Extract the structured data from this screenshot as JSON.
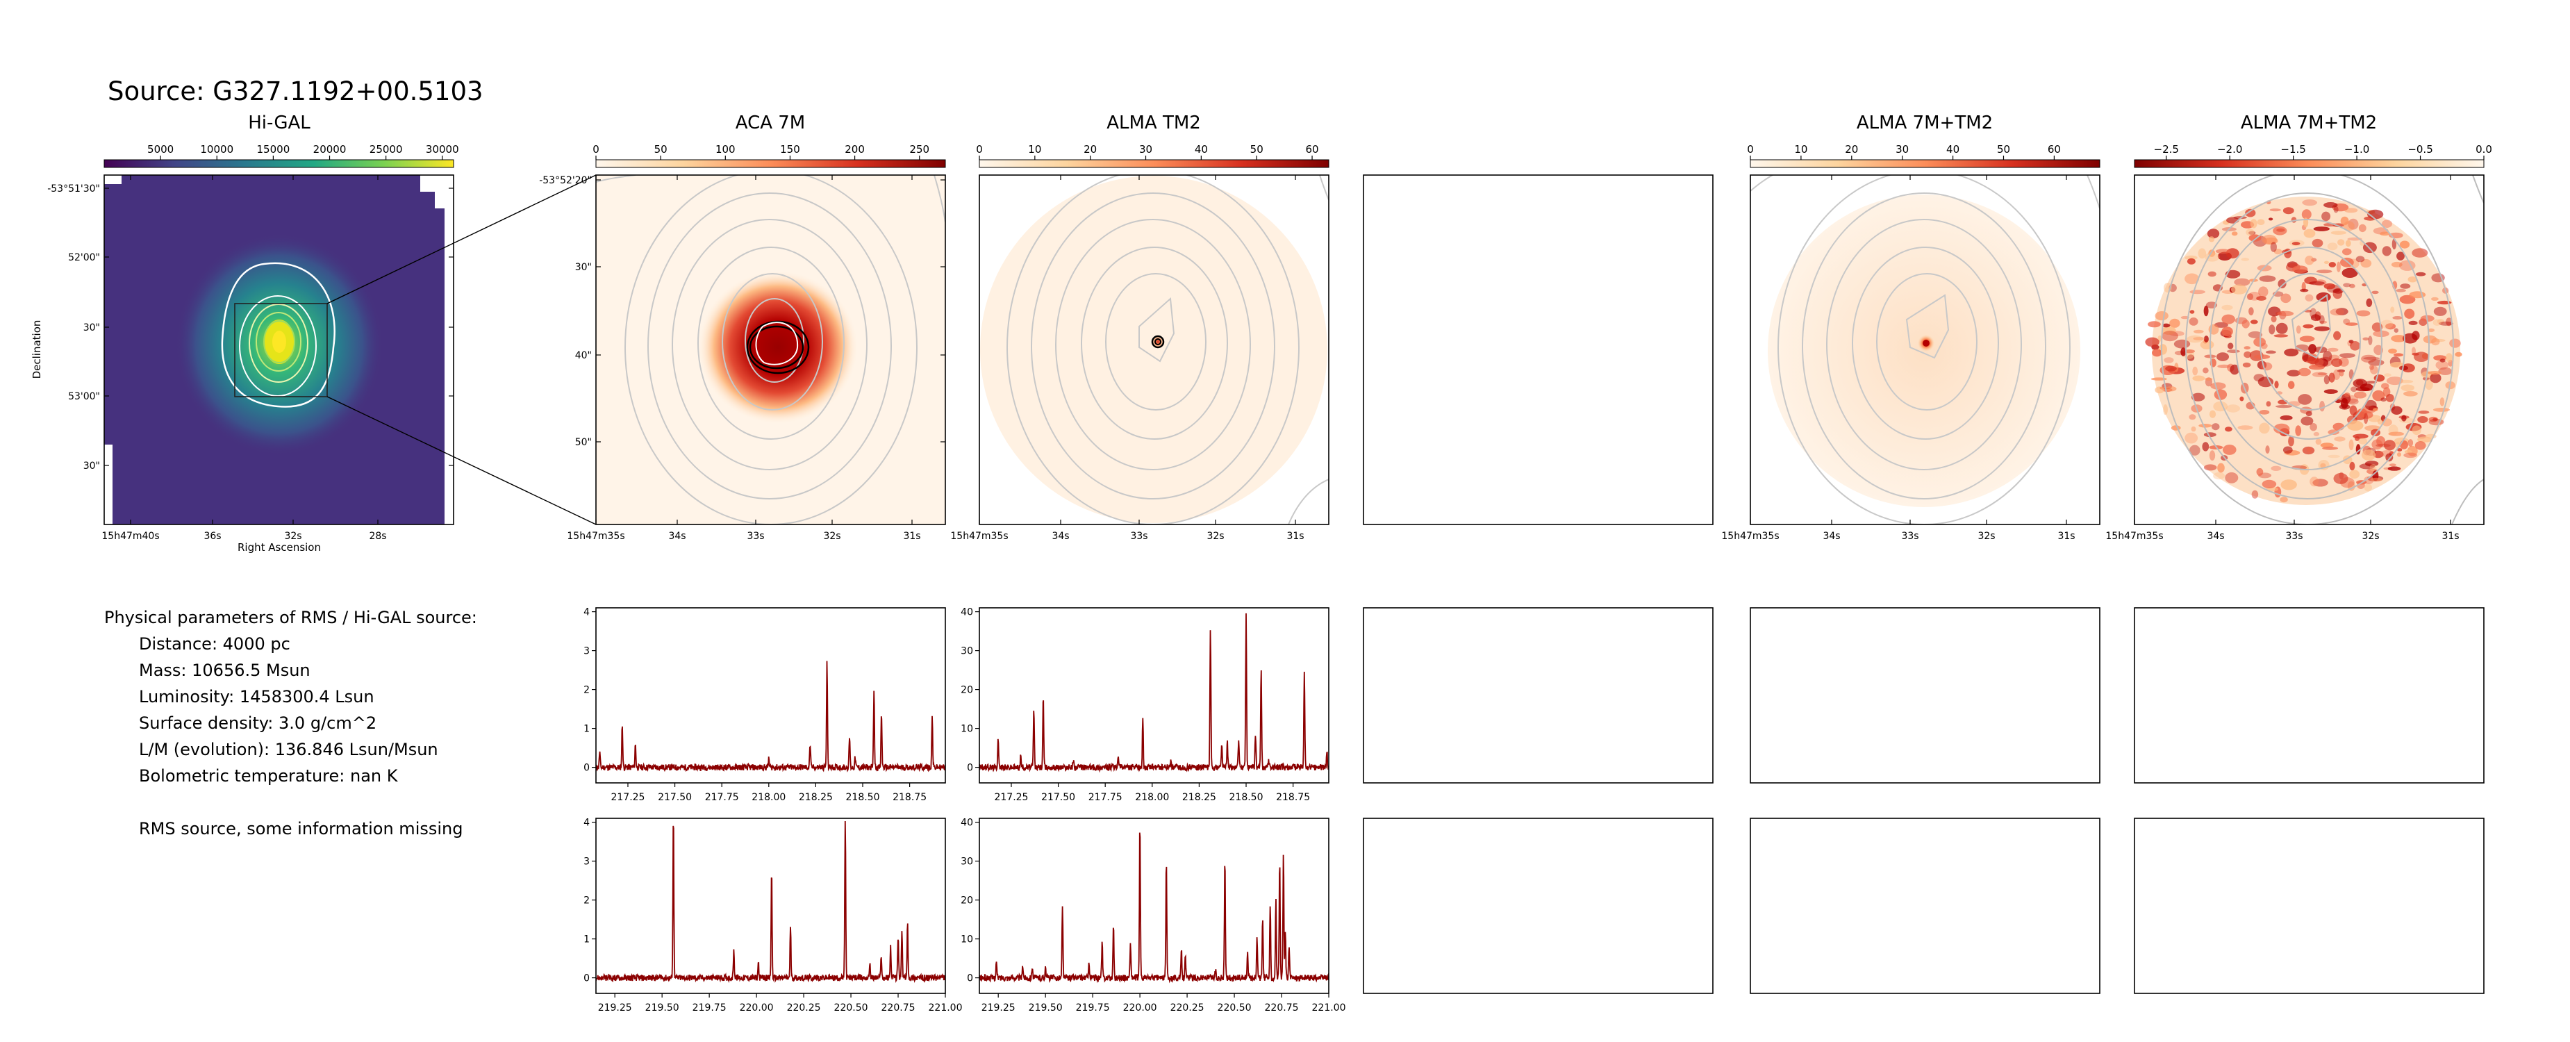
{
  "source_title": "Source: G327.1192+00.5103",
  "panel_titles": {
    "higal": "Hi-GAL",
    "aca7m": "ACA 7M",
    "alma_tm2": "ALMA TM2",
    "alma_7m_tm2": "ALMA 7M+TM2",
    "alma_7m_tm2_b": "ALMA 7M+TM2"
  },
  "colorbars": {
    "higal": {
      "cmap": "viridis",
      "ticks": [
        "5000",
        "10000",
        "15000",
        "20000",
        "25000",
        "30000"
      ],
      "vmin": 0,
      "vmax": 31000,
      "tick_values": [
        5000,
        10000,
        15000,
        20000,
        25000,
        30000
      ]
    },
    "aca7m": {
      "cmap": "OrRd",
      "ticks": [
        "0",
        "50",
        "100",
        "150",
        "200",
        "250"
      ],
      "vmin": 0,
      "vmax": 270,
      "tick_values": [
        0,
        50,
        100,
        150,
        200,
        250
      ]
    },
    "alma_tm2": {
      "cmap": "OrRd",
      "ticks": [
        "0",
        "10",
        "20",
        "30",
        "40",
        "50",
        "60"
      ],
      "vmin": 0,
      "vmax": 63,
      "tick_values": [
        0,
        10,
        20,
        30,
        40,
        50,
        60
      ]
    },
    "alma_7m_tm2": {
      "cmap": "OrRd",
      "ticks": [
        "0",
        "10",
        "20",
        "30",
        "40",
        "50",
        "60"
      ],
      "vmin": 0,
      "vmax": 69,
      "tick_values": [
        0,
        10,
        20,
        30,
        40,
        50,
        60
      ]
    },
    "alma_7m_tm2_b": {
      "cmap": "OrRd_r",
      "ticks": [
        "−2.5",
        "−2.0",
        "−1.5",
        "−1.0",
        "−0.5",
        "0.0"
      ],
      "vmin": -2.75,
      "vmax": 0,
      "tick_values": [
        -2.5,
        -2.0,
        -1.5,
        -1.0,
        -0.5,
        0.0
      ]
    }
  },
  "higal_axes": {
    "ylabel": "Declination",
    "xlabel": "Right Ascension",
    "yticks": [
      "-53°51'30\"",
      "52'00\"",
      "30\"",
      "53'00\"",
      "30\""
    ],
    "xticks": [
      "15h47m40s",
      "36s",
      "32s",
      "28s"
    ]
  },
  "zoom_axes": {
    "yticks": [
      "-53°52'20\"",
      "30\"",
      "40\"",
      "50\""
    ],
    "xticks": [
      "15h47m35s",
      "34s",
      "33s",
      "32s",
      "31s"
    ]
  },
  "params": {
    "heading": "Physical parameters of RMS / Hi-GAL source:",
    "distance": "Distance: 4000 pc",
    "mass": "Mass: 10656.5 Msun",
    "luminosity": "Luminosity: 1458300.4 Lsun",
    "surface_density": "Surface density: 3.0 g/cm^2",
    "lm": "L/M (evolution): 136.846 Lsun/Msun",
    "tbol": "Bolometric temperature: nan K",
    "note": "RMS source, some information missing"
  },
  "colors": {
    "spectrum": "#8b0000",
    "contour_grey": "#c8c8c8",
    "contour_white": "#ffffff"
  },
  "chart_data": [
    {
      "type": "line",
      "panel": "ACA 7M spectrum, upper band",
      "title": "",
      "xlim": [
        217.08,
        218.94
      ],
      "ylim": [
        -0.4,
        4.1
      ],
      "xticks": [
        217.25,
        217.5,
        217.75,
        218.0,
        218.25,
        218.5,
        218.75
      ],
      "xtick_labels": [
        "217.25",
        "217.50",
        "217.75",
        "218.00",
        "218.25",
        "218.50",
        "218.75"
      ],
      "yticks": [
        0,
        1,
        2,
        3,
        4
      ],
      "ytick_labels": [
        "0",
        "1",
        "2",
        "3",
        "4"
      ],
      "noise": 0.08,
      "peaks": [
        [
          217.1,
          0.4
        ],
        [
          217.22,
          1.1
        ],
        [
          217.29,
          0.6
        ],
        [
          218.0,
          0.2
        ],
        [
          218.22,
          0.6
        ],
        [
          218.31,
          2.7
        ],
        [
          218.43,
          0.8
        ],
        [
          218.46,
          0.25
        ],
        [
          218.56,
          2.0
        ],
        [
          218.6,
          1.4
        ],
        [
          218.87,
          1.3
        ]
      ]
    },
    {
      "type": "line",
      "panel": "ALMA TM2 spectrum, upper band",
      "title": "",
      "xlim": [
        217.08,
        218.94
      ],
      "ylim": [
        -4,
        41
      ],
      "xticks": [
        217.25,
        217.5,
        217.75,
        218.0,
        218.25,
        218.5,
        218.75
      ],
      "xtick_labels": [
        "217.25",
        "217.50",
        "217.75",
        "218.00",
        "218.25",
        "218.50",
        "218.75"
      ],
      "yticks": [
        0,
        10,
        20,
        30,
        40
      ],
      "ytick_labels": [
        "0",
        "10",
        "20",
        "30",
        "40"
      ],
      "noise": 0.8,
      "peaks": [
        [
          217.18,
          8
        ],
        [
          217.3,
          3
        ],
        [
          217.37,
          15
        ],
        [
          217.42,
          18
        ],
        [
          217.58,
          2
        ],
        [
          217.82,
          3
        ],
        [
          217.95,
          12
        ],
        [
          218.1,
          2
        ],
        [
          218.31,
          36
        ],
        [
          218.37,
          6
        ],
        [
          218.4,
          6.5
        ],
        [
          218.46,
          7
        ],
        [
          218.5,
          39
        ],
        [
          218.55,
          9
        ],
        [
          218.58,
          25
        ],
        [
          218.62,
          2
        ],
        [
          218.81,
          25
        ],
        [
          218.93,
          4
        ]
      ]
    },
    {
      "type": "line",
      "panel": "ACA 7M spectrum, lower band",
      "title": "",
      "xlim": [
        219.15,
        221.0
      ],
      "ylim": [
        -0.4,
        4.1
      ],
      "xticks": [
        219.25,
        219.5,
        219.75,
        220.0,
        220.25,
        220.5,
        220.75,
        221.0
      ],
      "xtick_labels": [
        "219.25",
        "219.50",
        "219.75",
        "220.00",
        "220.25",
        "220.50",
        "220.75",
        "221.00"
      ],
      "yticks": [
        0,
        1,
        2,
        3,
        4
      ],
      "ytick_labels": [
        "0",
        "1",
        "2",
        "3",
        "4"
      ],
      "noise": 0.08,
      "peaks": [
        [
          219.56,
          4.2
        ],
        [
          219.88,
          0.7
        ],
        [
          220.01,
          0.4
        ],
        [
          220.08,
          2.8
        ],
        [
          220.18,
          1.3
        ],
        [
          220.47,
          4.1
        ],
        [
          220.6,
          0.4
        ],
        [
          220.66,
          0.6
        ],
        [
          220.71,
          0.8
        ],
        [
          220.75,
          1.1
        ],
        [
          220.77,
          1.2
        ],
        [
          220.8,
          1.4
        ]
      ]
    },
    {
      "type": "line",
      "panel": "ALMA TM2 spectrum, lower band",
      "title": "",
      "xlim": [
        219.15,
        221.0
      ],
      "ylim": [
        -4,
        41
      ],
      "xticks": [
        219.25,
        219.5,
        219.75,
        220.0,
        220.25,
        220.5,
        220.75,
        221.0
      ],
      "xtick_labels": [
        "219.25",
        "219.50",
        "219.75",
        "220.00",
        "220.25",
        "220.50",
        "220.75",
        "221.00"
      ],
      "yticks": [
        0,
        10,
        20,
        30,
        40
      ],
      "ytick_labels": [
        "0",
        "10",
        "20",
        "30",
        "40"
      ],
      "noise": 0.8,
      "peaks": [
        [
          219.24,
          4
        ],
        [
          219.38,
          3
        ],
        [
          219.43,
          3
        ],
        [
          219.5,
          3
        ],
        [
          219.59,
          18
        ],
        [
          219.73,
          4
        ],
        [
          219.8,
          9
        ],
        [
          219.86,
          14
        ],
        [
          219.95,
          9
        ],
        [
          220.0,
          40
        ],
        [
          220.14,
          30
        ],
        [
          220.22,
          7
        ],
        [
          220.24,
          6
        ],
        [
          220.4,
          2
        ],
        [
          220.45,
          31
        ],
        [
          220.57,
          7
        ],
        [
          220.62,
          11
        ],
        [
          220.65,
          15
        ],
        [
          220.69,
          18
        ],
        [
          220.72,
          20
        ],
        [
          220.74,
          30
        ],
        [
          220.76,
          32
        ],
        [
          220.77,
          12
        ],
        [
          220.79,
          8
        ]
      ]
    }
  ]
}
